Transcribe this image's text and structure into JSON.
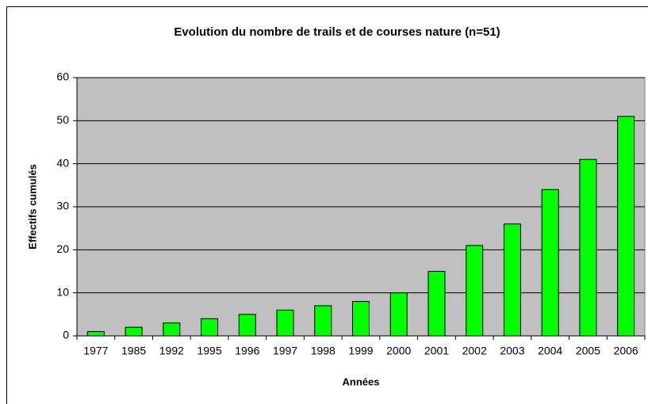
{
  "chart_data": {
    "type": "bar",
    "title": "Evolution du nombre de trails et de courses nature (n=51)",
    "x_label": "Années",
    "y_label": "Effectifs cumulés",
    "categories": [
      "1977",
      "1985",
      "1992",
      "1995",
      "1996",
      "1997",
      "1998",
      "1999",
      "2000",
      "2001",
      "2002",
      "2003",
      "2004",
      "2005",
      "2006"
    ],
    "values": [
      1,
      2,
      3,
      4,
      5,
      6,
      7,
      8,
      10,
      15,
      21,
      26,
      34,
      41,
      51
    ],
    "color": "#00ff00",
    "ylim": [
      0,
      60
    ],
    "yticks": [
      0,
      10,
      20,
      30,
      40,
      50,
      60
    ],
    "grid": true
  }
}
